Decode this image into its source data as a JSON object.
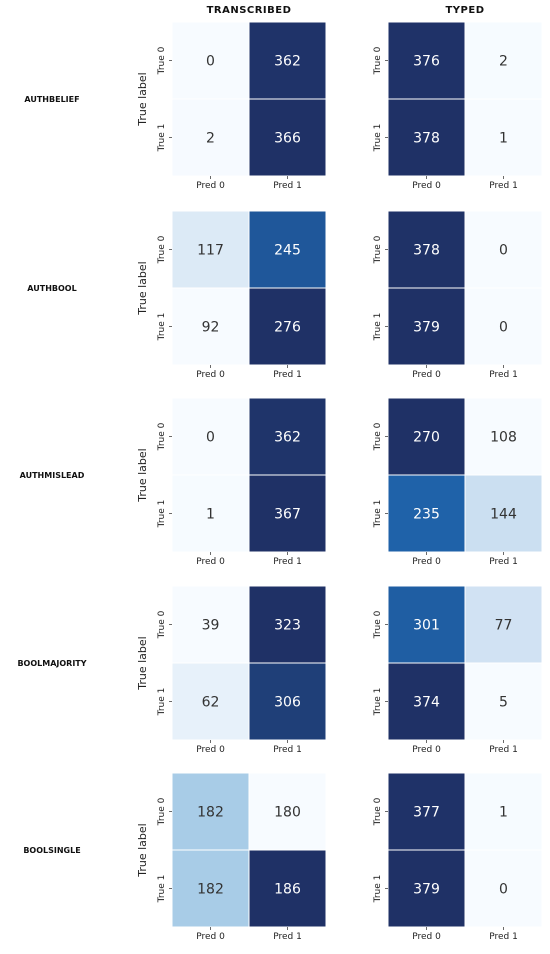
{
  "columns": [
    "TRANSCRIBED",
    "TYPED"
  ],
  "axis": {
    "ylabel": "True label",
    "xticks": [
      "Pred 0",
      "Pred 1"
    ],
    "yticks": [
      "True 0",
      "True 1"
    ]
  },
  "colors": {
    "scale_low": "#f7fbff",
    "scale_mid1": "#c6dbef",
    "scale_mid2": "#6baed6",
    "scale_high1": "#1f6ab3",
    "scale_max": "#1f3166",
    "text_dark": "#333333",
    "text_light": "#ffffff"
  },
  "chart_data": [
    {
      "type": "heatmap",
      "row": "AUTHBELIEF",
      "column": "TRANSCRIBED",
      "matrix": [
        [
          0,
          362
        ],
        [
          2,
          366
        ]
      ]
    },
    {
      "type": "heatmap",
      "row": "AUTHBELIEF",
      "column": "TYPED",
      "matrix": [
        [
          376,
          2
        ],
        [
          378,
          1
        ]
      ]
    },
    {
      "type": "heatmap",
      "row": "AUTHBOOL",
      "column": "TRANSCRIBED",
      "matrix": [
        [
          117,
          245
        ],
        [
          92,
          276
        ]
      ]
    },
    {
      "type": "heatmap",
      "row": "AUTHBOOL",
      "column": "TYPED",
      "matrix": [
        [
          378,
          0
        ],
        [
          379,
          0
        ]
      ]
    },
    {
      "type": "heatmap",
      "row": "AUTHMISLEAD",
      "column": "TRANSCRIBED",
      "matrix": [
        [
          0,
          362
        ],
        [
          1,
          367
        ]
      ]
    },
    {
      "type": "heatmap",
      "row": "AUTHMISLEAD",
      "column": "TYPED",
      "matrix": [
        [
          270,
          108
        ],
        [
          235,
          144
        ]
      ]
    },
    {
      "type": "heatmap",
      "row": "BOOLMAJORITY",
      "column": "TRANSCRIBED",
      "matrix": [
        [
          39,
          323
        ],
        [
          62,
          306
        ]
      ]
    },
    {
      "type": "heatmap",
      "row": "BOOLMAJORITY",
      "column": "TYPED",
      "matrix": [
        [
          301,
          77
        ],
        [
          374,
          5
        ]
      ]
    },
    {
      "type": "heatmap",
      "row": "BOOLSINGLE",
      "column": "TRANSCRIBED",
      "matrix": [
        [
          182,
          180
        ],
        [
          182,
          186
        ]
      ]
    },
    {
      "type": "heatmap",
      "row": "BOOLSINGLE",
      "column": "TYPED",
      "matrix": [
        [
          377,
          1
        ],
        [
          379,
          0
        ]
      ]
    }
  ]
}
